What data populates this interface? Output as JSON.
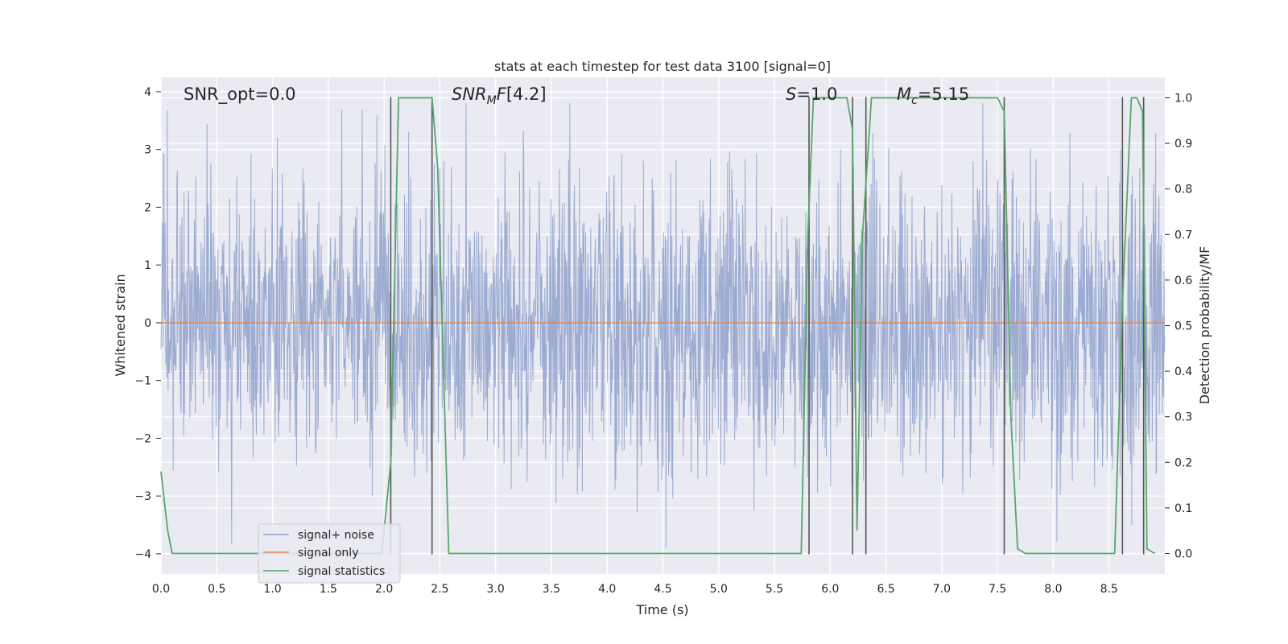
{
  "chart_data": {
    "type": "line",
    "title": "stats at each timestep for test data 3100 [signal=0]",
    "xlabel": "Time (s)",
    "ylabel": "Whitened strain",
    "y2label": "Detection probability/MF",
    "xlim": [
      0.0,
      9.0
    ],
    "ylim": [
      -4.35,
      4.25
    ],
    "y2lim": [
      -0.045,
      1.045
    ],
    "xticks": [
      "0.0",
      "0.5",
      "1.0",
      "1.5",
      "2.0",
      "2.5",
      "3.0",
      "3.5",
      "4.0",
      "4.5",
      "5.0",
      "5.5",
      "6.0",
      "6.5",
      "7.0",
      "7.5",
      "8.0",
      "8.5"
    ],
    "yticks": [
      "4",
      "3",
      "2",
      "1",
      "0",
      "−1",
      "−2",
      "−3",
      "−4"
    ],
    "y2ticks": [
      "1.0",
      "0.9",
      "0.8",
      "0.7",
      "0.6",
      "0.5",
      "0.4",
      "0.3",
      "0.2",
      "0.1",
      "0.0"
    ],
    "grid": true,
    "legend_position": "lower-left",
    "annotations": {
      "snr_opt": "SNR_opt=0.0",
      "snr_mf": "[4.2]",
      "s": "=1.0",
      "mc": "=5.15"
    },
    "series": [
      {
        "name": "signal+ noise",
        "axis": "left",
        "color": "#8da0cb",
        "description_of_values": "whitened noise time series, roughly within ±2 with spikes up to about ±4",
        "envelope_upper_typical": 2.0,
        "envelope_lower_typical": -2.0,
        "max": 3.8,
        "min": -3.9
      },
      {
        "name": "signal only",
        "axis": "left",
        "color": "#dd8452",
        "x": [
          0.0,
          9.0
        ],
        "y": [
          0.0,
          0.0
        ]
      },
      {
        "name": "signal statistics",
        "axis": "right",
        "color": "#55a868",
        "x": [
          0.0,
          0.06,
          0.1,
          0.15,
          1.98,
          2.06,
          2.13,
          2.43,
          2.48,
          2.58,
          5.74,
          5.8,
          5.85,
          6.15,
          6.2,
          6.24,
          6.29,
          6.37,
          7.5,
          7.56,
          7.62,
          7.68,
          7.75,
          8.55,
          8.62,
          8.7,
          8.75,
          8.8,
          8.84,
          8.91
        ],
        "y": [
          0.18,
          0.05,
          0.0,
          0.0,
          0.0,
          0.2,
          1.0,
          1.0,
          0.85,
          0.0,
          0.0,
          0.7,
          1.0,
          1.0,
          0.93,
          0.05,
          0.7,
          1.0,
          1.0,
          0.97,
          0.3,
          0.01,
          0.0,
          0.0,
          0.55,
          1.0,
          1.0,
          0.97,
          0.01,
          0.0
        ]
      }
    ],
    "vertical_markers_x": [
      2.06,
      2.43,
      5.81,
      6.2,
      6.32,
      7.56,
      8.62,
      8.81
    ]
  }
}
